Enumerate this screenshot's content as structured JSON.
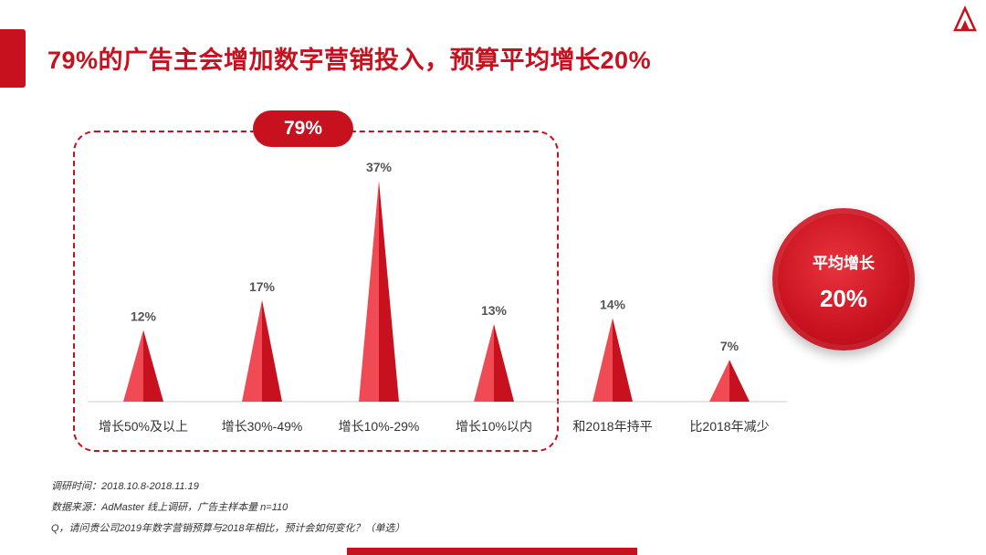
{
  "title": "79%的广告主会增加数字营销投入，预算平均增长20%",
  "highlight": {
    "label": "79%"
  },
  "average": {
    "label": "平均增长",
    "value": "20%"
  },
  "colors": {
    "accent": "#c8111f",
    "bar_light": "#f04a55",
    "bar_dark": "#c8111f",
    "axis": "#cccccc"
  },
  "chart_data": {
    "type": "bar",
    "categories": [
      "增长50%及以上",
      "增长30%-49%",
      "增长10%-29%",
      "增长10%以内",
      "和2018年持平",
      "比2018年减少"
    ],
    "values": [
      12,
      17,
      37,
      13,
      14,
      7
    ],
    "value_labels": [
      "12%",
      "17%",
      "37%",
      "13%",
      "14%",
      "7%"
    ],
    "title": "",
    "xlabel": "",
    "ylabel": "",
    "ylim": [
      0,
      37
    ],
    "grid": false
  },
  "footnotes": [
    "调研时间：2018.10.8-2018.11.19",
    "数据来源：AdMaster 线上调研，广告主样本量 n=110",
    "Q，请问贵公司2019年数字营销预算与2018年相比，预计会如何变化？（单选）"
  ],
  "logo": {
    "icon": "triangle-logo-icon"
  }
}
